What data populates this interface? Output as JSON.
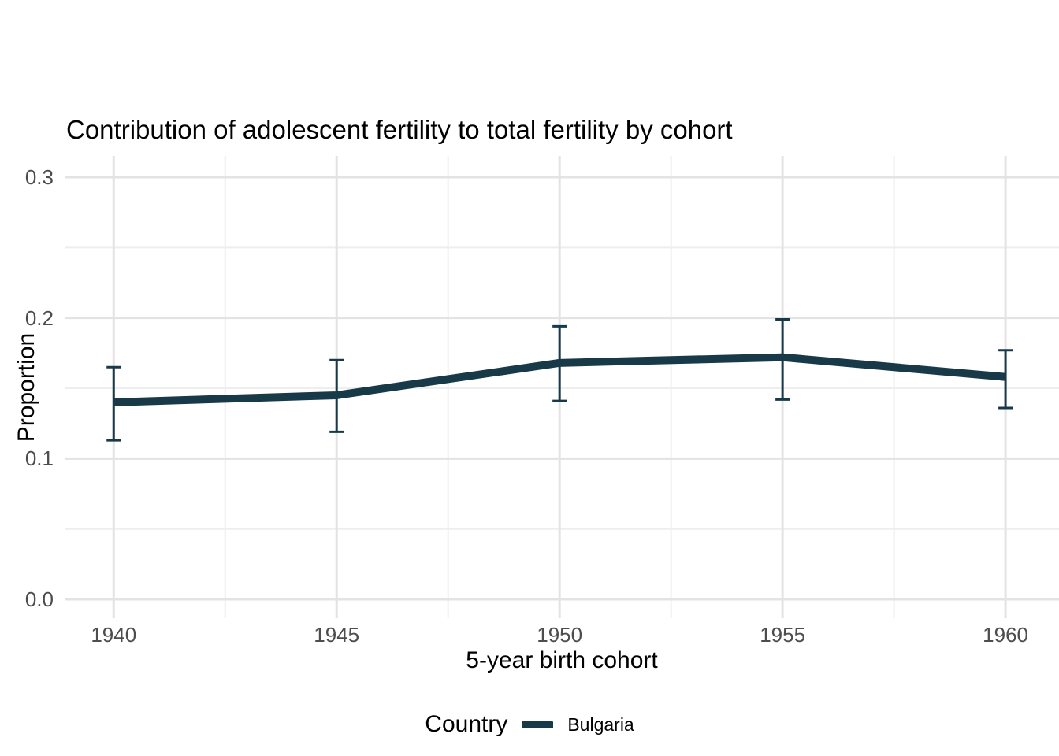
{
  "title": "Contribution of adolescent fertility to total fertility by cohort",
  "x_axis": {
    "label": "5-year birth cohort",
    "tick_labels": [
      "1940",
      "1945",
      "1950",
      "1955",
      "1960"
    ]
  },
  "y_axis": {
    "label": "Proportion",
    "tick_labels": [
      "0.0",
      "0.1",
      "0.2",
      "0.3"
    ]
  },
  "legend": {
    "title": "Country",
    "entries": [
      {
        "label": "Bulgaria",
        "color": "#183a48"
      }
    ]
  },
  "colors": {
    "series": "#183a48",
    "grid_major": "#e3e3e3",
    "grid_minor": "#eeeeee",
    "tick_text": "#4d4d4d",
    "text": "#000000",
    "background": "#ffffff"
  },
  "chart_data": {
    "type": "line",
    "title": "Contribution of adolescent fertility to total fertility by cohort",
    "xlabel": "5-year birth cohort",
    "ylabel": "Proportion",
    "x": [
      1940,
      1945,
      1950,
      1955,
      1960
    ],
    "x_ticks": [
      1940,
      1945,
      1950,
      1955,
      1960
    ],
    "y_ticks": [
      0.0,
      0.1,
      0.2,
      0.3
    ],
    "ylim": [
      0.0,
      0.3
    ],
    "grid": "major and minor gridlines, white background",
    "legend_position": "bottom",
    "series": [
      {
        "name": "Bulgaria",
        "color": "#183a48",
        "values": [
          0.14,
          0.145,
          0.168,
          0.172,
          0.158
        ],
        "lower": [
          0.113,
          0.119,
          0.141,
          0.142,
          0.136
        ],
        "upper": [
          0.165,
          0.17,
          0.194,
          0.199,
          0.177
        ],
        "error_bars": true
      }
    ]
  }
}
